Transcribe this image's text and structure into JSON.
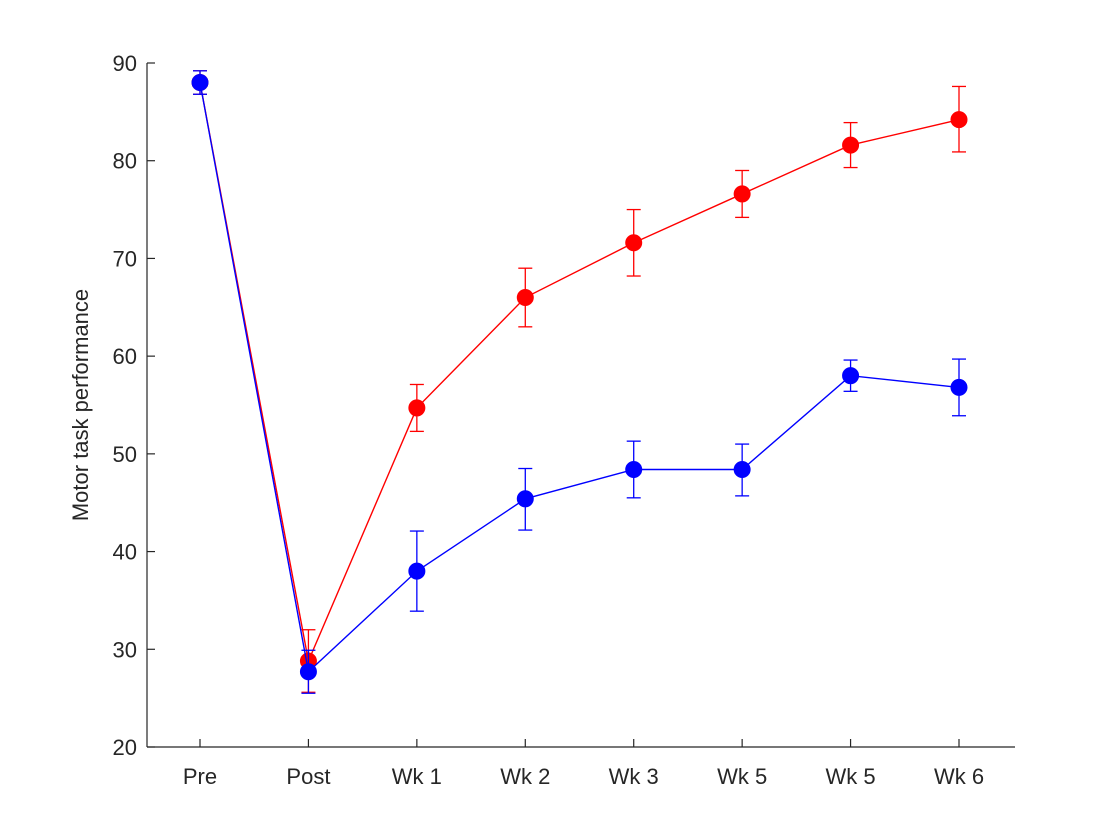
{
  "chart_data": {
    "type": "line",
    "title": "",
    "xlabel": "",
    "ylabel": "Motor task performance",
    "categories": [
      "Pre",
      "Post",
      "Wk 1",
      "Wk 2",
      "Wk 3",
      "Wk 5",
      "Wk 5",
      "Wk 6"
    ],
    "ylim": [
      20,
      90
    ],
    "yticks": [
      20,
      30,
      40,
      50,
      60,
      70,
      80,
      90
    ],
    "grid": false,
    "legend": "none",
    "series": [
      {
        "color": "#ff0000",
        "values": [
          88.0,
          28.8,
          54.7,
          66.0,
          71.6,
          76.6,
          81.6,
          84.2
        ],
        "err_low": [
          86.8,
          25.6,
          52.3,
          63.0,
          68.2,
          74.2,
          79.3,
          80.9
        ],
        "err_high": [
          89.2,
          32.0,
          57.1,
          69.0,
          75.0,
          79.0,
          83.9,
          87.6
        ]
      },
      {
        "color": "#0000ff",
        "values": [
          88.0,
          27.7,
          38.0,
          45.4,
          48.4,
          48.4,
          58.0,
          56.8
        ],
        "err_low": [
          86.8,
          25.5,
          33.9,
          42.2,
          45.5,
          45.7,
          56.4,
          53.9
        ],
        "err_high": [
          89.2,
          29.9,
          42.1,
          48.5,
          51.3,
          51.0,
          59.6,
          59.7
        ]
      }
    ]
  }
}
